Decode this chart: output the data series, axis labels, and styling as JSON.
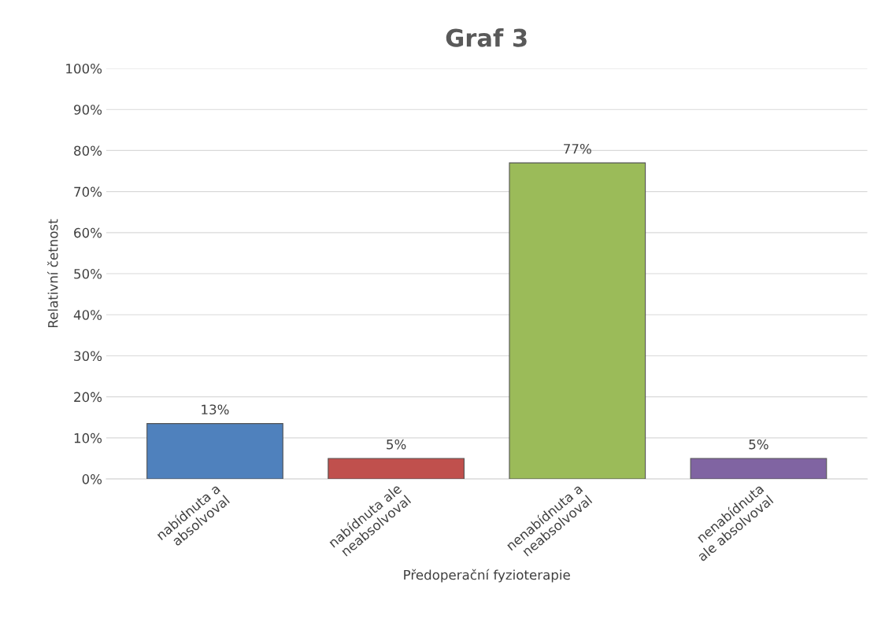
{
  "chart_data": {
    "type": "bar",
    "title": "Graf 3",
    "xlabel": "Předoperační fyzioterapie",
    "ylabel": "Relativní četnost",
    "categories": [
      "nabídnuta a\nabsolvoval",
      "nabídnuta ale\nneabsolvoval",
      "nenabídnuta a\nneabsolvoval",
      "nenabídnuta\nale absolvoval"
    ],
    "values": [
      13.5,
      5,
      77,
      5
    ],
    "colors": [
      "#4f81bd",
      "#c0504d",
      "#9bbb59",
      "#8064a2"
    ],
    "value_labels": [
      "13%",
      "5%",
      "77%",
      "5%"
    ],
    "ylim": [
      0,
      100
    ],
    "yticks": [
      {
        "value": 0,
        "label": "0%"
      },
      {
        "value": 10,
        "label": "10%"
      },
      {
        "value": 20,
        "label": "20%"
      },
      {
        "value": 30,
        "label": "30%"
      },
      {
        "value": 40,
        "label": "40%"
      },
      {
        "value": 50,
        "label": "50%"
      },
      {
        "value": 60,
        "label": "60%"
      },
      {
        "value": 70,
        "label": "70%"
      },
      {
        "value": 80,
        "label": "80%"
      },
      {
        "value": 90,
        "label": "90%"
      },
      {
        "value": 100,
        "label": "100%"
      }
    ],
    "grid": "y",
    "legend": false
  }
}
